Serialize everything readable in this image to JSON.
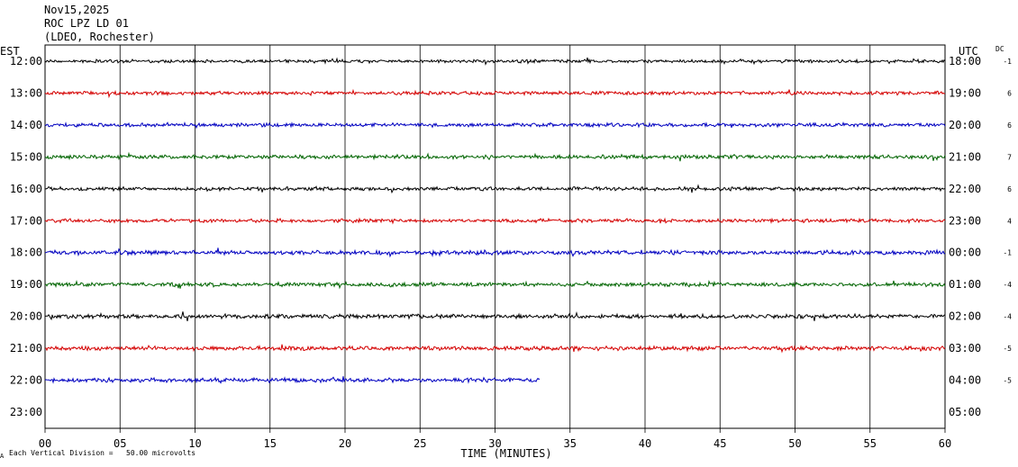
{
  "header": {
    "date": "Nov15,2025",
    "station": "ROC LPZ LD 01",
    "network": "(LDEO, Rochester)"
  },
  "footer": {
    "marker": "A",
    "scale_note": "Each Vertical Division =   50.00 microvolts"
  },
  "chart_data": {
    "type": "line",
    "subtype": "helicorder",
    "xlabel": "TIME (MINUTES)",
    "xlim": [
      0,
      60
    ],
    "x_ticks": [
      "00",
      "05",
      "10",
      "15",
      "20",
      "25",
      "30",
      "35",
      "40",
      "45",
      "50",
      "55",
      "60"
    ],
    "left_axis_label": "EST",
    "right_axis_label": "UTC",
    "dc_label": "DC",
    "grid": true,
    "trace_colors": [
      "#000000",
      "#d40000",
      "#0000c0",
      "#006400"
    ],
    "rows": [
      {
        "est": "12:00",
        "utc": "18:00",
        "dc": "-1",
        "minutes": 60,
        "amplitude": 0.35
      },
      {
        "est": "13:00",
        "utc": "19:00",
        "dc": "6",
        "minutes": 60,
        "amplitude": 0.4
      },
      {
        "est": "14:00",
        "utc": "20:00",
        "dc": "6",
        "minutes": 60,
        "amplitude": 0.4
      },
      {
        "est": "15:00",
        "utc": "21:00",
        "dc": "7",
        "minutes": 60,
        "amplitude": 0.4
      },
      {
        "est": "16:00",
        "utc": "22:00",
        "dc": "6",
        "minutes": 60,
        "amplitude": 0.4
      },
      {
        "est": "17:00",
        "utc": "23:00",
        "dc": "4",
        "minutes": 60,
        "amplitude": 0.4
      },
      {
        "est": "18:00",
        "utc": "00:00",
        "dc": "-1",
        "minutes": 60,
        "amplitude": 0.45
      },
      {
        "est": "19:00",
        "utc": "01:00",
        "dc": "-4",
        "minutes": 60,
        "amplitude": 0.45
      },
      {
        "est": "20:00",
        "utc": "02:00",
        "dc": "-4",
        "minutes": 60,
        "amplitude": 0.45
      },
      {
        "est": "21:00",
        "utc": "03:00",
        "dc": "-5",
        "minutes": 60,
        "amplitude": 0.45
      },
      {
        "est": "22:00",
        "utc": "04:00",
        "dc": "-5",
        "minutes": 33,
        "amplitude": 0.45
      },
      {
        "est": "23:00",
        "utc": "05:00",
        "dc": "",
        "minutes": 0,
        "amplitude": 0
      }
    ]
  }
}
